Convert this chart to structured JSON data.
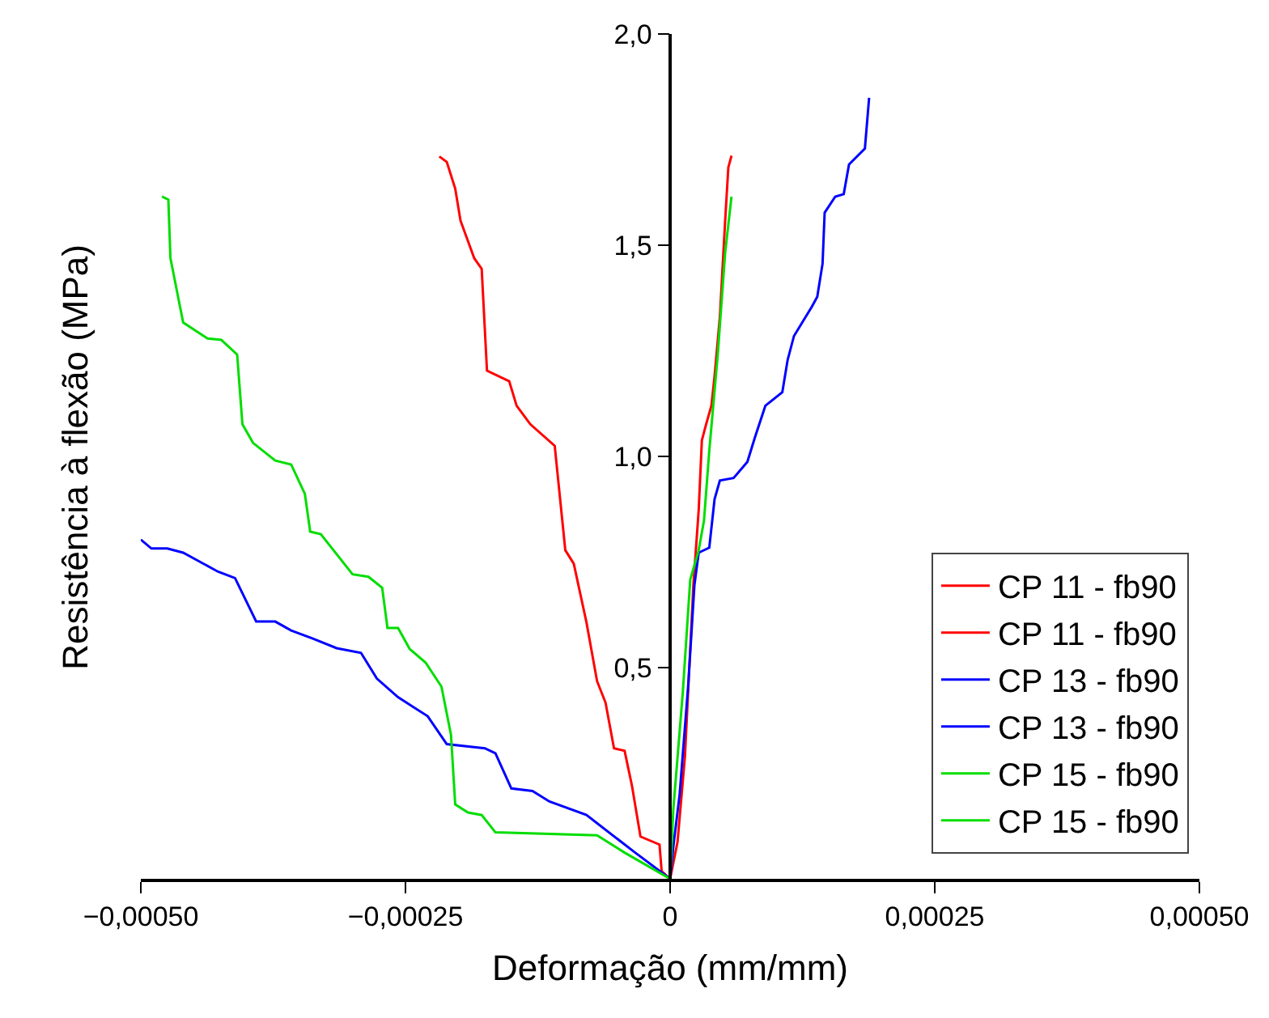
{
  "chart_data": {
    "type": "line",
    "xlabel": "Deformação (mm/mm)",
    "ylabel": "Resistência à flexão (MPa)",
    "xlim": [
      -0.0005,
      0.0005
    ],
    "ylim": [
      0,
      2.0
    ],
    "xticks": [
      {
        "value": -0.0005,
        "label": "−0,00050"
      },
      {
        "value": -0.00025,
        "label": "−0,00025"
      },
      {
        "value": 0,
        "label": "0"
      },
      {
        "value": 0.00025,
        "label": "0,00025"
      },
      {
        "value": 0.0005,
        "label": "0,00050"
      }
    ],
    "yticks": [
      {
        "value": 0.5,
        "label": "0,5"
      },
      {
        "value": 1.0,
        "label": "1,0"
      },
      {
        "value": 1.5,
        "label": "1,5"
      },
      {
        "value": 2.0,
        "label": "2,0"
      }
    ],
    "legend": "bottom right",
    "marker": "none",
    "line_style": "solid",
    "series": [
      {
        "name": "CP 11 - fb90",
        "color": "#ff0000",
        "x": [
          0,
          7e-06,
          1.4e-05,
          2.2e-05,
          2.7e-05,
          3e-05,
          3.4e-05,
          3.9e-05,
          4.2e-05,
          4.7e-05,
          5.2e-05,
          5.5e-05,
          5.8e-05
        ],
        "values": [
          0,
          0.087,
          0.29,
          0.696,
          0.873,
          1.038,
          1.076,
          1.12,
          1.19,
          1.33,
          1.558,
          1.684,
          1.712
        ]
      },
      {
        "name": "CP 11 - fb90",
        "color": "#ff0000",
        "x": [
          0,
          -8e-06,
          -1e-05,
          -2.8e-05,
          -3.6e-05,
          -4.3e-05,
          -5.3e-05,
          -6.1e-05,
          -6.9e-05,
          -7.9e-05,
          -9.1e-05,
          -9.9e-05,
          -0.000109,
          -0.000132,
          -0.000145,
          -0.000152,
          -0.000173,
          -0.000178,
          -0.000185,
          -0.000198,
          -0.000203,
          -0.000211,
          -0.000218
        ],
        "values": [
          0,
          0.018,
          0.081,
          0.1,
          0.22,
          0.303,
          0.309,
          0.417,
          0.468,
          0.607,
          0.746,
          0.778,
          1.025,
          1.076,
          1.12,
          1.178,
          1.203,
          1.444,
          1.469,
          1.558,
          1.634,
          1.697,
          1.71
        ]
      },
      {
        "name": "CP 13 - fb90",
        "color": "#0000ff",
        "x": [
          0,
          3e-06,
          9e-06,
          1.7e-05,
          2.3e-05,
          2.7e-05,
          3.7e-05,
          4.2e-05,
          4.7e-05,
          6e-05,
          7.3e-05,
          8e-05,
          9e-05,
          0.000106,
          0.000111,
          0.000117,
          0.000134,
          0.000139,
          0.000144,
          0.000146,
          0.000156,
          0.000164,
          0.000169,
          0.000184,
          0.000188
        ],
        "values": [
          0,
          0.075,
          0.2,
          0.455,
          0.696,
          0.772,
          0.784,
          0.899,
          0.943,
          0.949,
          0.987,
          1.044,
          1.12,
          1.152,
          1.228,
          1.285,
          1.355,
          1.378,
          1.456,
          1.577,
          1.615,
          1.621,
          1.691,
          1.729,
          1.849
        ]
      },
      {
        "name": "CP 13 - fb90",
        "color": "#0000ff",
        "x": [
          0,
          -3.3e-05,
          -7.9e-05,
          -0.000114,
          -0.00013,
          -0.00015,
          -0.000165,
          -0.000175,
          -0.000211,
          -0.000229,
          -0.000257,
          -0.000277,
          -0.000292,
          -0.000315,
          -0.000338,
          -0.000358,
          -0.000373,
          -0.000391,
          -0.000411,
          -0.000427,
          -0.00046,
          -0.000475,
          -0.00049,
          -0.0005
        ],
        "values": [
          0,
          0.062,
          0.151,
          0.183,
          0.208,
          0.214,
          0.297,
          0.309,
          0.319,
          0.385,
          0.43,
          0.474,
          0.535,
          0.546,
          0.569,
          0.588,
          0.609,
          0.609,
          0.712,
          0.727,
          0.772,
          0.782,
          0.782,
          0.803
        ]
      },
      {
        "name": "CP 15 - fb90",
        "color": "#00dd00",
        "x": [
          0,
          3e-06,
          1.2e-05,
          1.9e-05,
          2.7e-05,
          3.2e-05,
          3.7e-05,
          4.5e-05,
          5.2e-05,
          5.8e-05
        ],
        "values": [
          0,
          0.163,
          0.442,
          0.708,
          0.778,
          0.848,
          1.013,
          1.241,
          1.482,
          1.615
        ]
      },
      {
        "name": "CP 15 - fb90",
        "color": "#00dd00",
        "x": [
          0,
          -4.3e-05,
          -6.9e-05,
          -0.000165,
          -0.000178,
          -0.000191,
          -0.000203,
          -0.000207,
          -0.000216,
          -0.000231,
          -0.000246,
          -0.000257,
          -0.000267,
          -0.000272,
          -0.000285,
          -0.0003,
          -0.00033,
          -0.00034,
          -0.000345,
          -0.000358,
          -0.000373,
          -0.000394,
          -0.000404,
          -0.000409,
          -0.000424,
          -0.000437,
          -0.00046,
          -0.000472,
          -0.000474,
          -0.00048
        ],
        "values": [
          0,
          0.062,
          0.103,
          0.11,
          0.151,
          0.157,
          0.176,
          0.341,
          0.455,
          0.512,
          0.544,
          0.594,
          0.594,
          0.689,
          0.715,
          0.721,
          0.816,
          0.822,
          0.911,
          0.981,
          0.99,
          1.032,
          1.076,
          1.241,
          1.276,
          1.279,
          1.317,
          1.469,
          1.608,
          1.615
        ]
      }
    ]
  }
}
